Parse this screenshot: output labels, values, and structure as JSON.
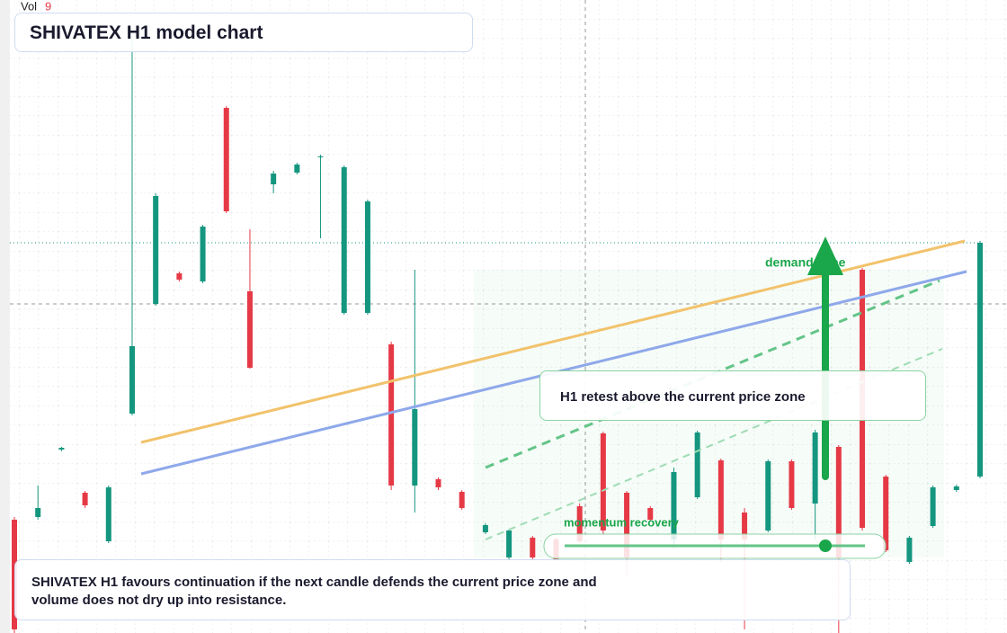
{
  "chart_data": {
    "type": "candlestick",
    "title": "SHIVATEX H1 model chart",
    "volume_label": "Vol",
    "volume_value": "9",
    "annotations": {
      "demand": "demand zone",
      "retest": "H1 retest above the current price zone",
      "momentum": "momentum recovery",
      "note": "SHIVATEX H1 favours continuation if the next candle defends the current price zone and volume does not dry up into resistance."
    },
    "up_color": "#14967f",
    "down_color": "#e63946",
    "ylim": [
      0,
      704
    ],
    "categories": [
      null,
      null,
      null,
      null,
      null,
      null,
      null,
      null,
      null,
      null,
      null,
      null,
      null,
      null,
      null,
      null,
      null,
      null,
      null,
      null,
      null,
      null,
      null,
      null,
      null,
      null,
      null,
      null,
      null,
      null,
      null,
      null,
      null,
      null,
      null,
      null,
      null,
      null,
      null,
      null,
      null,
      null
    ],
    "open": [
      126,
      129,
      204,
      156,
      102,
      244,
      366,
      400,
      391,
      584,
      380,
      499,
      512,
      529,
      356,
      356,
      321,
      164,
      171,
      157,
      112,
      84,
      106,
      104,
      141,
      222,
      156,
      139,
      104,
      151,
      192,
      134,
      114,
      191,
      144,
      207,
      404,
      174,
      79,
      119,
      159,
      174
    ],
    "high": [
      129,
      164,
      207,
      158,
      164,
      664,
      489,
      402,
      454,
      586,
      449,
      514,
      523,
      532,
      520,
      482,
      324,
      404,
      173,
      159,
      122,
      116,
      108,
      106,
      144,
      224,
      158,
      141,
      184,
      225,
      194,
      139,
      193,
      193,
      226,
      209,
      406,
      176,
      108,
      164,
      165,
      436
    ],
    "low": [
      0,
      126,
      202,
      139,
      100,
      242,
      364,
      391,
      389,
      467,
      294,
      489,
      510,
      439,
      354,
      354,
      159,
      134,
      159,
      137,
      110,
      82,
      82,
      80,
      100,
      109,
      64,
      124,
      94,
      149,
      79,
      4,
      112,
      137,
      104,
      0,
      114,
      90,
      77,
      117,
      157,
      172
    ],
    "close": [
      4,
      139,
      206,
      142,
      162,
      319,
      486,
      393,
      452,
      469,
      295,
      511,
      521,
      530,
      518,
      480,
      164,
      249,
      162,
      139,
      120,
      114,
      84,
      82,
      102,
      114,
      84,
      126,
      179,
      223,
      104,
      104,
      191,
      139,
      223,
      84,
      117,
      92,
      106,
      162,
      163,
      434
    ]
  }
}
